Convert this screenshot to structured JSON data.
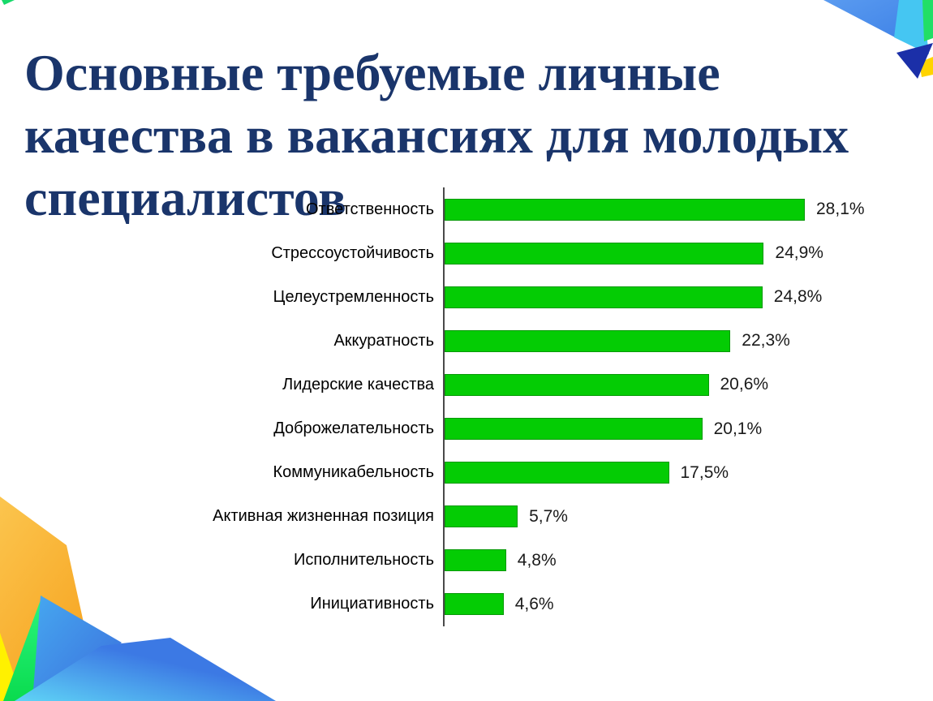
{
  "slide": {
    "title": "Основные требуемые личные качества в вакансиях для молодых специалистов",
    "title_color": "#1A356B",
    "background": "#FFFFFF"
  },
  "chart_data": {
    "type": "bar",
    "orientation": "horizontal",
    "title": "",
    "xlabel": "",
    "ylabel": "",
    "xlim": [
      0,
      30
    ],
    "grid": false,
    "legend": false,
    "bar_color": "#04CC04",
    "bar_border_color": "#089908",
    "axis_color": "#4A4A4A",
    "label_color": "#000000",
    "value_color": "#1A1A1A",
    "categories": [
      "Ответственность",
      "Стрессоустойчивость",
      "Целеустремленность",
      "Аккуратность",
      "Лидерские качества",
      "Доброжелательность",
      "Коммуникабельность",
      "Активная жизненная позиция",
      "Исполнительность",
      "Инициативность"
    ],
    "values": [
      28.1,
      24.9,
      24.8,
      22.3,
      20.6,
      20.1,
      17.5,
      5.7,
      4.8,
      4.6
    ],
    "value_labels": [
      "28,1%",
      "24,9%",
      "24,8%",
      "22,3%",
      "20,6%",
      "20,1%",
      "17,5%",
      "5,7%",
      "4,8%",
      "4,6%"
    ]
  },
  "decorations": {
    "top_left_accent": "#17D96A",
    "top_right": {
      "blue": "#4285E8",
      "blue_light": "#5A9BF0",
      "cyan": "#45C6F2",
      "green": "#21DF66",
      "navy": "#1B2FA8",
      "yellow": "#FFD400"
    },
    "bottom_left": {
      "orange_light": "#FBC54E",
      "orange": "#F7A522",
      "yellow": "#FFF100",
      "green_light": "#2BF57F",
      "green": "#0ADB4E",
      "peak_blue_light": "#46A8F0",
      "peak_blue": "#3B6EDC",
      "mountain_light": "#5FD4F6",
      "mountain_blue": "#3C79E4"
    }
  }
}
